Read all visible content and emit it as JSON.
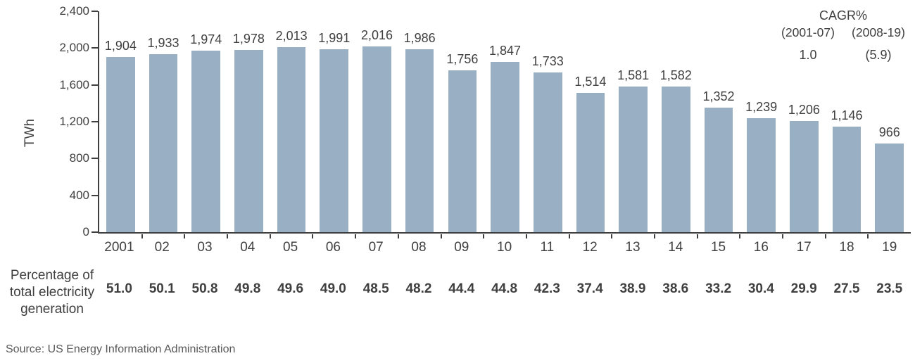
{
  "chart_data": {
    "type": "bar",
    "title": "",
    "xlabel": "",
    "ylabel": "TWh",
    "ylim": [
      0,
      2400
    ],
    "grid": false,
    "bar_color": "#98afc4",
    "axis_color": "#3f3f3f",
    "yticks": [
      0,
      400,
      800,
      1200,
      1600,
      2000,
      2400
    ],
    "ytick_labels": [
      "0",
      "400",
      "800",
      "1,200",
      "1,600",
      "2,000",
      "2,400"
    ],
    "categories": [
      "2001",
      "02",
      "03",
      "04",
      "05",
      "06",
      "07",
      "08",
      "09",
      "10",
      "11",
      "12",
      "13",
      "14",
      "15",
      "16",
      "17",
      "18",
      "19"
    ],
    "values": [
      1904,
      1933,
      1974,
      1978,
      2013,
      1991,
      2016,
      1986,
      1756,
      1847,
      1733,
      1514,
      1581,
      1582,
      1352,
      1239,
      1206,
      1146,
      966
    ],
    "value_labels": [
      "1,904",
      "1,933",
      "1,974",
      "1,978",
      "2,013",
      "1,991",
      "2,016",
      "1,986",
      "1,756",
      "1,847",
      "1,733",
      "1,514",
      "1,581",
      "1,582",
      "1,352",
      "1,239",
      "1,206",
      "1,146",
      "966"
    ],
    "percent_row": {
      "label_lines": [
        "Percentage of",
        "total electricity",
        "generation"
      ],
      "values": [
        "51.0",
        "50.1",
        "50.8",
        "49.8",
        "49.6",
        "49.0",
        "48.5",
        "48.2",
        "44.4",
        "44.8",
        "42.3",
        "37.4",
        "38.9",
        "38.6",
        "33.2",
        "30.4",
        "29.9",
        "27.5",
        "23.5"
      ]
    },
    "cagr": {
      "title": "CAGR%",
      "period1": "(2001-07)",
      "period2": "(2008-19)",
      "value1": "1.0",
      "value2": "(5.9)"
    }
  },
  "source": "Source: US Energy Information Administration"
}
